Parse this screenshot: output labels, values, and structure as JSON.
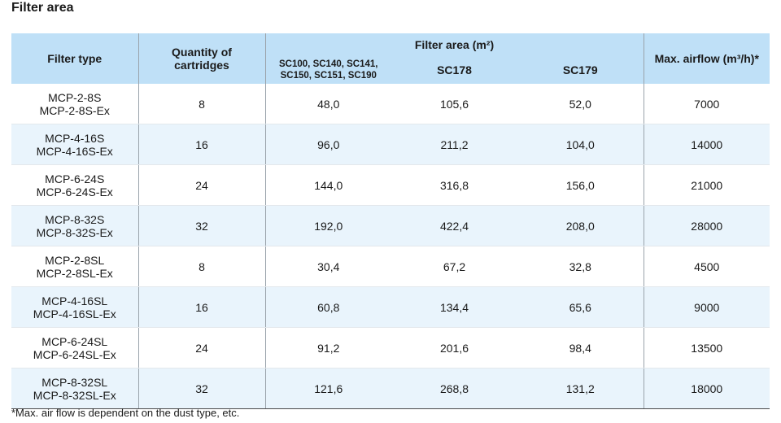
{
  "title": "Filter area",
  "headers": {
    "filter_type": "Filter type",
    "quantity": [
      "Quantity of",
      "cartridges"
    ],
    "filter_area": "Filter area (m²)",
    "sc_group": [
      "SC100, SC140, SC141,",
      "SC150, SC151, SC190"
    ],
    "sc178": "SC178",
    "sc179": "SC179",
    "max_airflow": "Max. airflow (m³/h)*"
  },
  "rows": [
    {
      "type": [
        "MCP-2-8S",
        "MCP-2-8S-Ex"
      ],
      "qty": "8",
      "sc_group": "48,0",
      "sc178": "105,6",
      "sc179": "52,0",
      "airflow": "7000"
    },
    {
      "type": [
        "MCP-4-16S",
        "MCP-4-16S-Ex"
      ],
      "qty": "16",
      "sc_group": "96,0",
      "sc178": "211,2",
      "sc179": "104,0",
      "airflow": "14000"
    },
    {
      "type": [
        "MCP-6-24S",
        "MCP-6-24S-Ex"
      ],
      "qty": "24",
      "sc_group": "144,0",
      "sc178": "316,8",
      "sc179": "156,0",
      "airflow": "21000"
    },
    {
      "type": [
        "MCP-8-32S",
        "MCP-8-32S-Ex"
      ],
      "qty": "32",
      "sc_group": "192,0",
      "sc178": "422,4",
      "sc179": "208,0",
      "airflow": "28000"
    },
    {
      "type": [
        "MCP-2-8SL",
        "MCP-2-8SL-Ex"
      ],
      "qty": "8",
      "sc_group": "30,4",
      "sc178": "67,2",
      "sc179": "32,8",
      "airflow": "4500"
    },
    {
      "type": [
        "MCP-4-16SL",
        "MCP-4-16SL-Ex"
      ],
      "qty": "16",
      "sc_group": "60,8",
      "sc178": "134,4",
      "sc179": "65,6",
      "airflow": "9000"
    },
    {
      "type": [
        "MCP-6-24SL",
        "MCP-6-24SL-Ex"
      ],
      "qty": "24",
      "sc_group": "91,2",
      "sc178": "201,6",
      "sc179": "98,4",
      "airflow": "13500"
    },
    {
      "type": [
        "MCP-8-32SL",
        "MCP-8-32SL-Ex"
      ],
      "qty": "32",
      "sc_group": "121,6",
      "sc178": "268,8",
      "sc179": "131,2",
      "airflow": "18000"
    }
  ],
  "footnote": "*Max. air flow is dependent on the dust type, etc."
}
